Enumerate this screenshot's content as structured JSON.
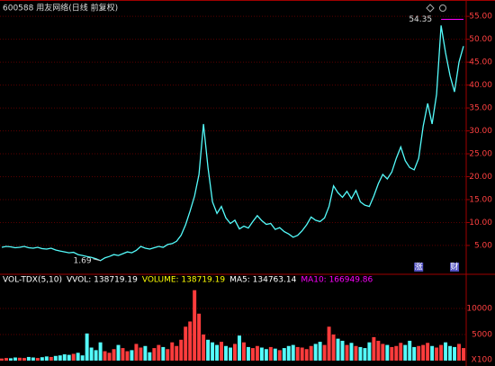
{
  "chart_data": {
    "type": "line",
    "title": "600588 用友网络(日线 前复权)",
    "color": "#54fcfc",
    "up_color": "#ff3c3c",
    "values": [
      4.6,
      4.8,
      4.7,
      4.5,
      4.6,
      4.8,
      4.5,
      4.4,
      4.6,
      4.3,
      4.2,
      4.4,
      4.0,
      3.8,
      3.6,
      3.4,
      3.5,
      3.0,
      2.8,
      2.6,
      2.4,
      2.1,
      1.69,
      2.3,
      2.6,
      3.0,
      2.8,
      3.2,
      3.6,
      3.4,
      3.9,
      4.8,
      4.4,
      4.2,
      4.5,
      4.8,
      4.6,
      5.2,
      5.4,
      5.9,
      7.2,
      9.5,
      12.5,
      15.8,
      20.5,
      31.5,
      22.0,
      14.5,
      12.0,
      13.5,
      11.0,
      9.8,
      10.5,
      8.6,
      9.2,
      8.8,
      10.2,
      11.5,
      10.4,
      9.6,
      9.8,
      8.5,
      8.9,
      8.0,
      7.5,
      6.8,
      7.2,
      8.2,
      9.5,
      11.2,
      10.5,
      10.2,
      11.0,
      13.5,
      18.0,
      16.5,
      15.5,
      16.8,
      15.2,
      17.0,
      14.5,
      13.8,
      13.5,
      15.8,
      18.5,
      20.5,
      19.5,
      21.0,
      24.0,
      26.5,
      23.5,
      22.0,
      21.5,
      24.0,
      31.0,
      36.0,
      31.5,
      38.0,
      53.0,
      47.0,
      42.0,
      38.5,
      45.0,
      48.5
    ],
    "ylim": [
      -0.9,
      56.6
    ],
    "yticks": [
      {
        "value": 5,
        "label": "5.00"
      },
      {
        "value": 10,
        "label": "10.00"
      },
      {
        "value": 15,
        "label": "15.00"
      },
      {
        "value": 20,
        "label": "20.00"
      },
      {
        "value": 25,
        "label": "25.00"
      },
      {
        "value": 30,
        "label": "30.00"
      },
      {
        "value": 35,
        "label": "35.00"
      },
      {
        "value": 40,
        "label": "40.00"
      },
      {
        "value": 45,
        "label": "45.00"
      },
      {
        "value": 50,
        "label": "50.00"
      },
      {
        "value": 55,
        "label": "55.00"
      }
    ],
    "grid": true,
    "annotations": [
      {
        "index": 98,
        "value": 54.35,
        "label": "54.35"
      },
      {
        "index": 22,
        "value": 1.69,
        "label": "1.69"
      }
    ],
    "markers": [
      {
        "index": 93,
        "label": "涨"
      },
      {
        "index": 101,
        "label": "财"
      }
    ],
    "volume": {
      "header": [
        {
          "text": "VOL-TDX(5,10)",
          "color": "#ffffff"
        },
        {
          "text": "VVOL: 138719.19",
          "color": "#ffffff"
        },
        {
          "text": "VOLUME: 138719.19",
          "color": "#ffff00"
        },
        {
          "text": "MA5: 134763.14",
          "color": "#ffffff"
        },
        {
          "text": "MA10: 166949.86",
          "color": "#ff00ff"
        }
      ],
      "values": [
        400,
        500,
        450,
        600,
        550,
        500,
        700,
        600,
        500,
        650,
        800,
        700,
        900,
        1000,
        1200,
        1100,
        1300,
        1500,
        1000,
        5200,
        2500,
        2000,
        3500,
        1800,
        1500,
        2200,
        3000,
        2400,
        1800,
        2000,
        3200,
        2500,
        2800,
        1600,
        2400,
        3000,
        2600,
        2200,
        3500,
        2800,
        4000,
        6500,
        7500,
        13500,
        9000,
        5000,
        4000,
        3500,
        3000,
        3600,
        2800,
        2500,
        3200,
        4800,
        3500,
        2600,
        2400,
        2800,
        2500,
        2200,
        2600,
        2300,
        2000,
        2400,
        2800,
        3000,
        2600,
        2500,
        2200,
        2800,
        3200,
        3600,
        3000,
        6500,
        5000,
        4200,
        3800,
        3000,
        3400,
        2800,
        2600,
        2400,
        3500,
        4500,
        3800,
        3200,
        3000,
        2600,
        2800,
        3400,
        3000,
        3800,
        2600,
        2800,
        3000,
        3400,
        2800,
        2500,
        3000,
        3500,
        2800,
        2600,
        3200,
        2400
      ],
      "ylim": [
        0,
        15170
      ],
      "yticks": [
        5000,
        10000
      ],
      "unit": "X100"
    }
  }
}
